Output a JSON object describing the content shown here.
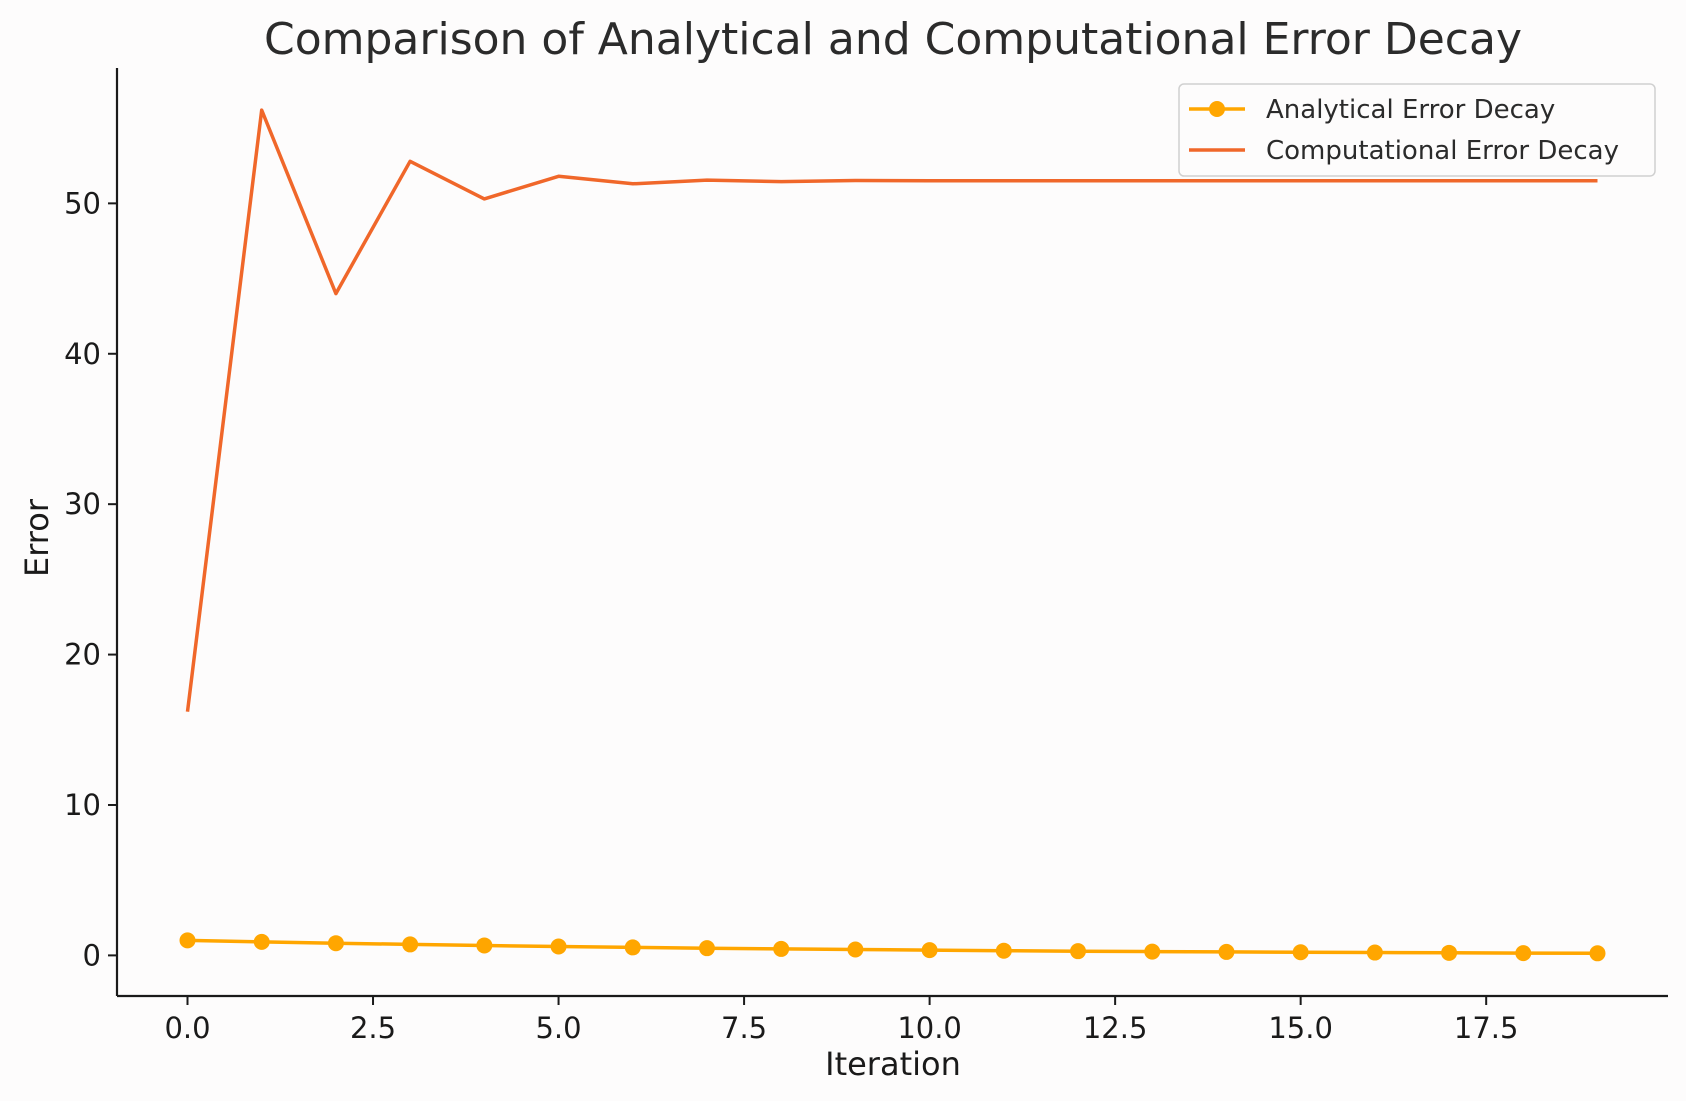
{
  "chart_data": {
    "type": "line",
    "title": "Comparison of Analytical and Computational Error Decay",
    "xlabel": "Iteration",
    "ylabel": "Error",
    "xlim": [
      -0.95,
      19.95
    ],
    "ylim": [
      -2.7,
      59
    ],
    "xticks": [
      0,
      2.5,
      5,
      7.5,
      10,
      12.5,
      15,
      17.5
    ],
    "xtick_labels": [
      "0.0",
      "2.5",
      "5.0",
      "7.5",
      "10.0",
      "12.5",
      "15.0",
      "17.5"
    ],
    "yticks": [
      0,
      10,
      20,
      30,
      40,
      50
    ],
    "ytick_labels": [
      "0",
      "10",
      "20",
      "30",
      "40",
      "50"
    ],
    "grid": false,
    "legend_position": "top-right",
    "x": [
      0,
      1,
      2,
      3,
      4,
      5,
      6,
      7,
      8,
      9,
      10,
      11,
      12,
      13,
      14,
      15,
      16,
      17,
      18,
      19
    ],
    "series": [
      {
        "name": "Analytical Error Decay",
        "color": "#ffa600",
        "marker": "circle",
        "values": [
          1.0,
          0.9,
          0.81,
          0.73,
          0.66,
          0.59,
          0.53,
          0.48,
          0.43,
          0.39,
          0.35,
          0.31,
          0.28,
          0.25,
          0.23,
          0.21,
          0.19,
          0.17,
          0.15,
          0.14
        ]
      },
      {
        "name": "Computational Error Decay",
        "color": "#f0672a",
        "marker": "none",
        "values": [
          16.2,
          56.2,
          44.0,
          52.8,
          50.3,
          51.8,
          51.3,
          51.55,
          51.45,
          51.52,
          51.5,
          51.5,
          51.5,
          51.5,
          51.5,
          51.5,
          51.5,
          51.5,
          51.5,
          51.5
        ]
      }
    ]
  }
}
